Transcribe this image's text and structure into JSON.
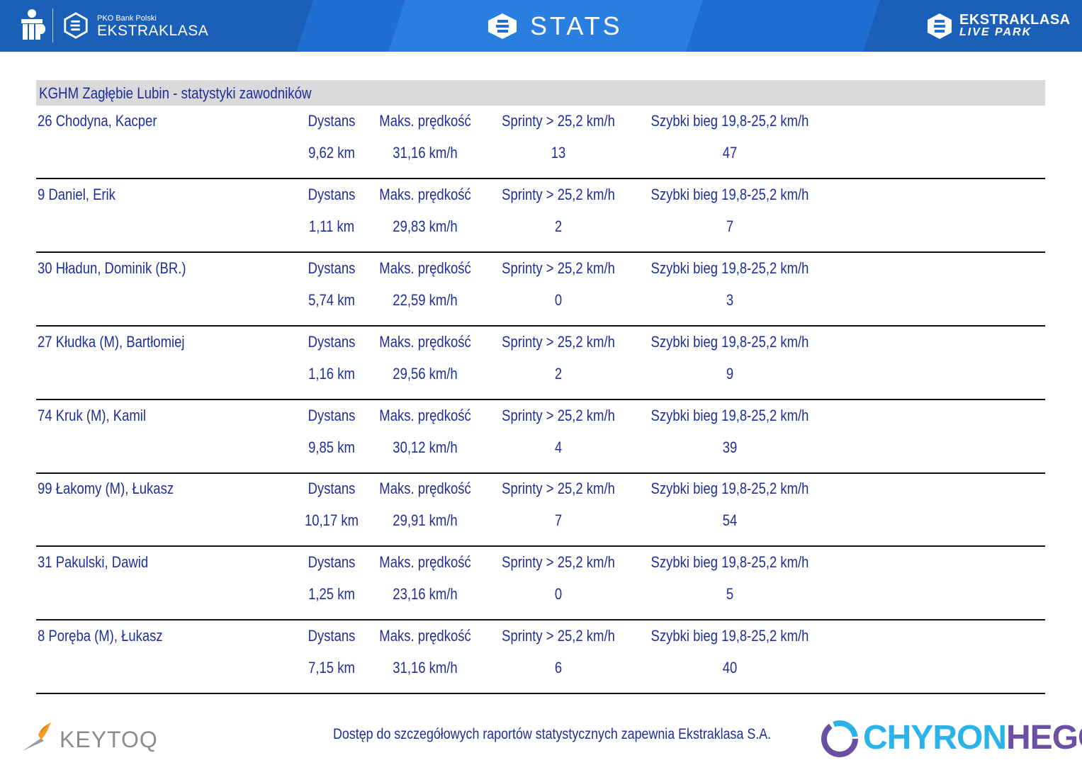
{
  "header": {
    "pko_small": "PKO Bank Polski",
    "ekstraklasa": "EKSTRAKLASA",
    "stats": "STATS",
    "live_park_1": "EKSTRAKLASA",
    "live_park_2": "LIVE PARK"
  },
  "table": {
    "title": "KGHM Zagłębie Lubin - statystyki zawodników",
    "labels": {
      "distance": "Dystans",
      "max_speed": "Maks. prędkość",
      "sprints": "Sprinty > 25,2 km/h",
      "fast_run": "Szybki bieg 19,8-25,2 km/h"
    },
    "players": [
      {
        "name": "26  Chodyna, Kacper",
        "distance": "9,62 km",
        "max_speed": "31,16 km/h",
        "sprints": "13",
        "fast_run": "47"
      },
      {
        "name": "9  Daniel, Erik",
        "distance": "1,11 km",
        "max_speed": "29,83 km/h",
        "sprints": "2",
        "fast_run": "7"
      },
      {
        "name": "30  Hładun, Dominik (BR.)",
        "distance": "5,74 km",
        "max_speed": "22,59 km/h",
        "sprints": "0",
        "fast_run": "3"
      },
      {
        "name": "27  Kłudka (M), Bartłomiej",
        "distance": "1,16 km",
        "max_speed": "29,56 km/h",
        "sprints": "2",
        "fast_run": "9"
      },
      {
        "name": "74  Kruk (M), Kamil",
        "distance": "9,85 km",
        "max_speed": "30,12 km/h",
        "sprints": "4",
        "fast_run": "39"
      },
      {
        "name": "99  Łakomy (M), Łukasz",
        "distance": "10,17 km",
        "max_speed": "29,91 km/h",
        "sprints": "7",
        "fast_run": "54"
      },
      {
        "name": "31  Pakulski, Dawid",
        "distance": "1,25 km",
        "max_speed": "23,16 km/h",
        "sprints": "0",
        "fast_run": "5"
      },
      {
        "name": "8  Poręba (M), Łukasz",
        "distance": "7,15 km",
        "max_speed": "31,16 km/h",
        "sprints": "6",
        "fast_run": "40"
      }
    ]
  },
  "footer": {
    "keytoq": "KEYTOQ",
    "note": "Dostęp do szczegółowych raportów statystycznych zapewnia Ekstraklasa S.A.",
    "chyron_a": "CHYRON",
    "chyron_b": "HEGO"
  },
  "colors": {
    "header_blue": "#1f6fd0",
    "text_blue": "#1f2f99",
    "title_bar_gray": "#d9d9d9",
    "chyron_cyan": "#2ab3e8",
    "chyron_purple": "#6a4fa3"
  }
}
